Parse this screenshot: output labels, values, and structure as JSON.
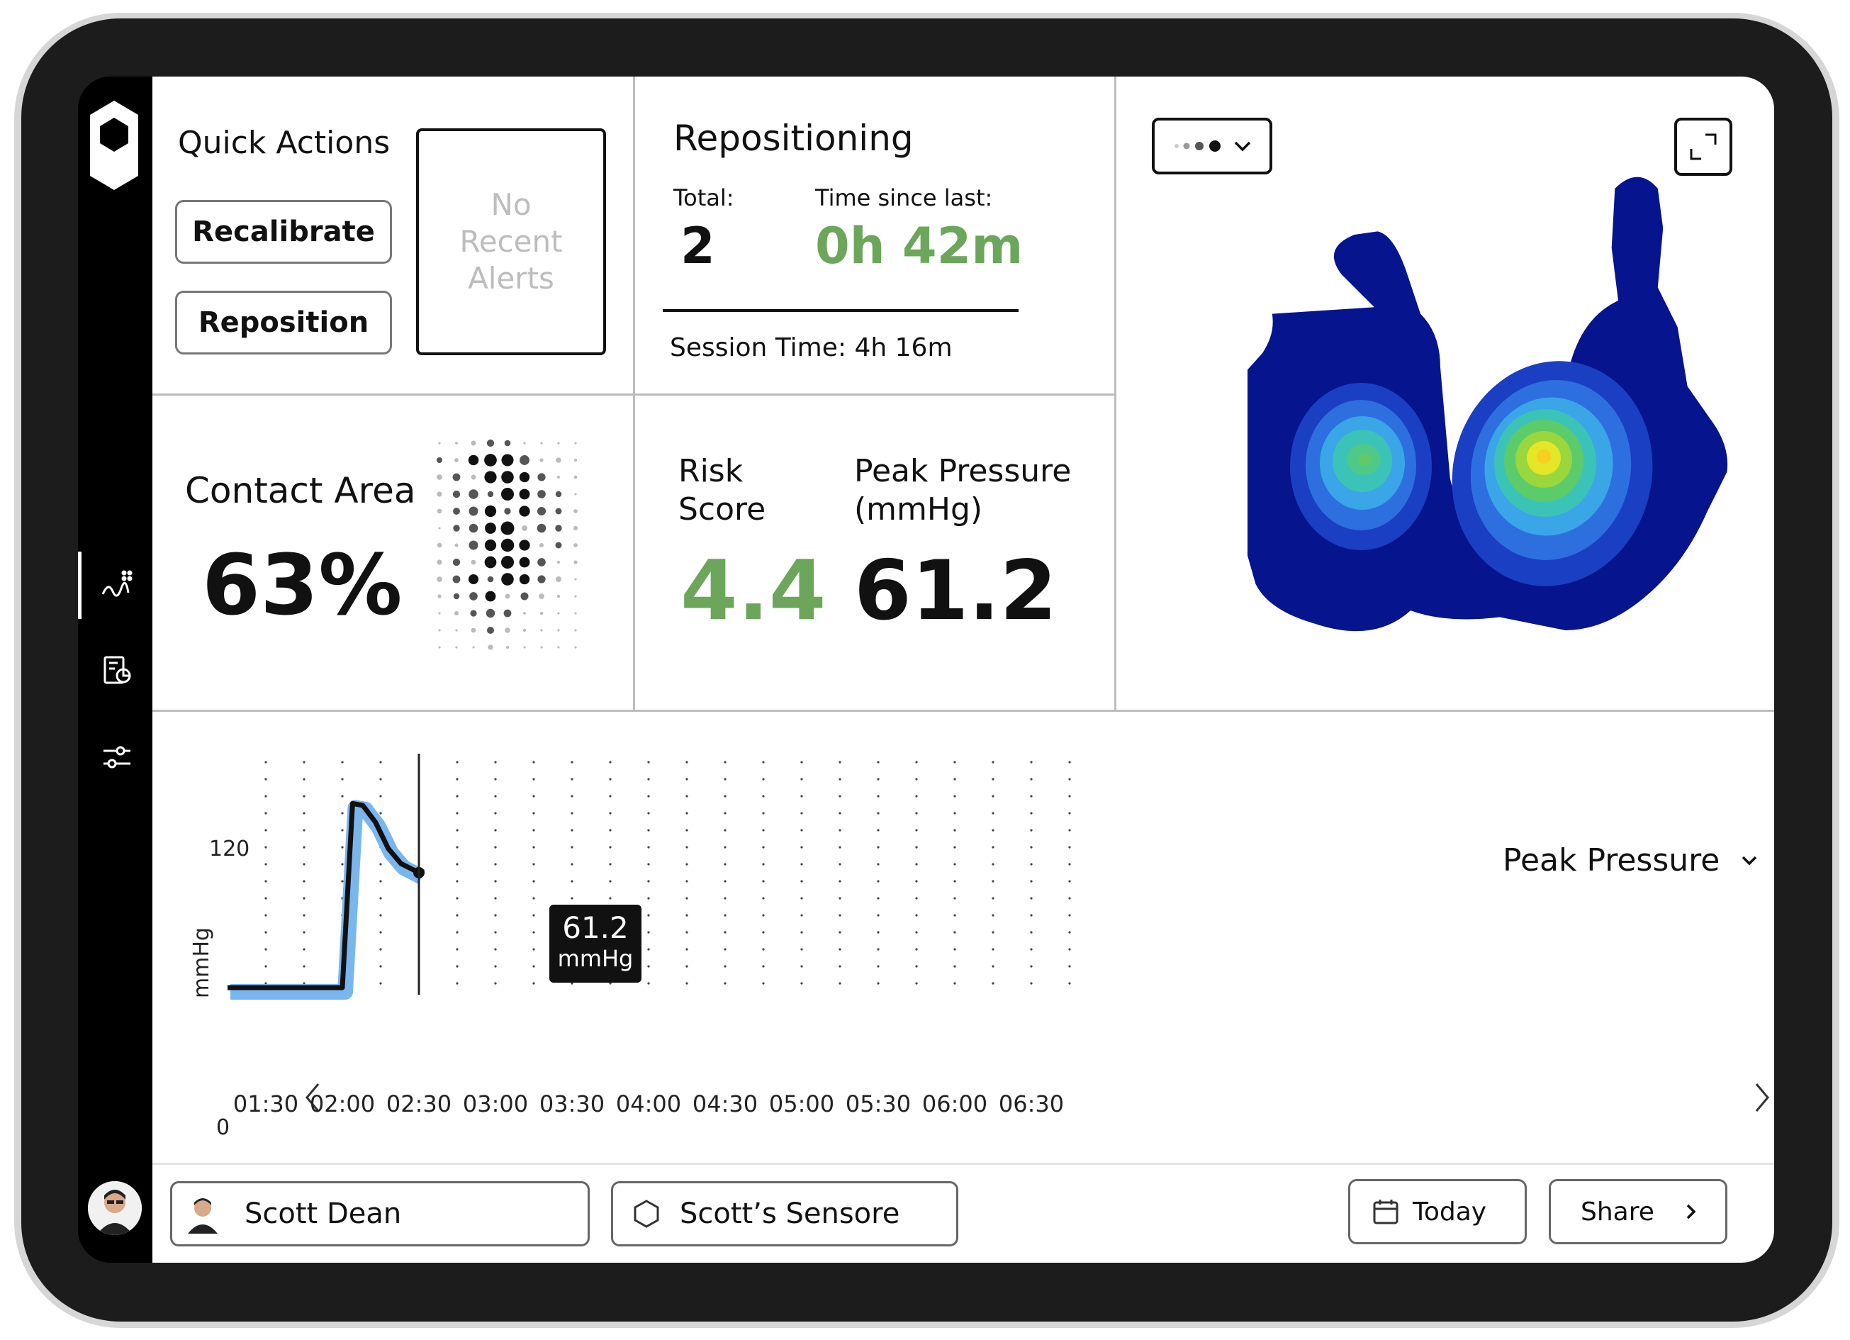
{
  "quick_actions": {
    "title": "Quick Actions",
    "recalibrate_label": "Recalibrate",
    "reposition_label": "Reposition",
    "alerts_text": "No Recent Alerts"
  },
  "repositioning": {
    "title": "Repositioning",
    "total_label": "Total:",
    "total_value": "2",
    "time_since_label": "Time since last:",
    "time_since_value": "0h 42m",
    "session_label": "Session Time: 4h 16m"
  },
  "contact_area": {
    "title": "Contact Area",
    "value": "63%"
  },
  "risk": {
    "label_line1": "Risk",
    "label_line2": "Score",
    "value": "4.4"
  },
  "peak": {
    "label_line1": "Peak Pressure",
    "label_line2": "(mmHg)",
    "value": "61.2"
  },
  "heatmap": {
    "view_selector_icon": "dots-scale-icon",
    "expand_icon": "expand-icon"
  },
  "chart_data": {
    "type": "line",
    "title": "",
    "metric_selector": "Peak Pressure",
    "ylabel": "mmHg",
    "ylim": [
      0,
      120
    ],
    "y_ticks": [
      "120",
      "0"
    ],
    "x_ticks": [
      "01:30",
      "02:00",
      "02:30",
      "03:00",
      "03:30",
      "04:00",
      "04:30",
      "05:00",
      "05:30",
      "06:00",
      "06:30"
    ],
    "series": [
      {
        "color": "#111111",
        "band_color": "#7ab6ee",
        "x": [
          "01:15",
          "02:00",
          "02:04",
          "02:08",
          "02:13",
          "02:18",
          "02:23",
          "02:30"
        ],
        "values": [
          0,
          0,
          98,
          97,
          88,
          74,
          66,
          61.2
        ]
      }
    ],
    "cursor": {
      "x": "02:30",
      "value": "61.2",
      "unit": "mmHg"
    },
    "grid": "dotted"
  },
  "footer": {
    "user_name": "Scott Dean",
    "sensor_name": "Scott’s Sensore",
    "date_label": "Today",
    "share_label": "Share"
  },
  "colors": {
    "accent_green": "#6ca65b",
    "band_blue": "#7ab6ee",
    "heat_low": "#0a1a8c"
  }
}
